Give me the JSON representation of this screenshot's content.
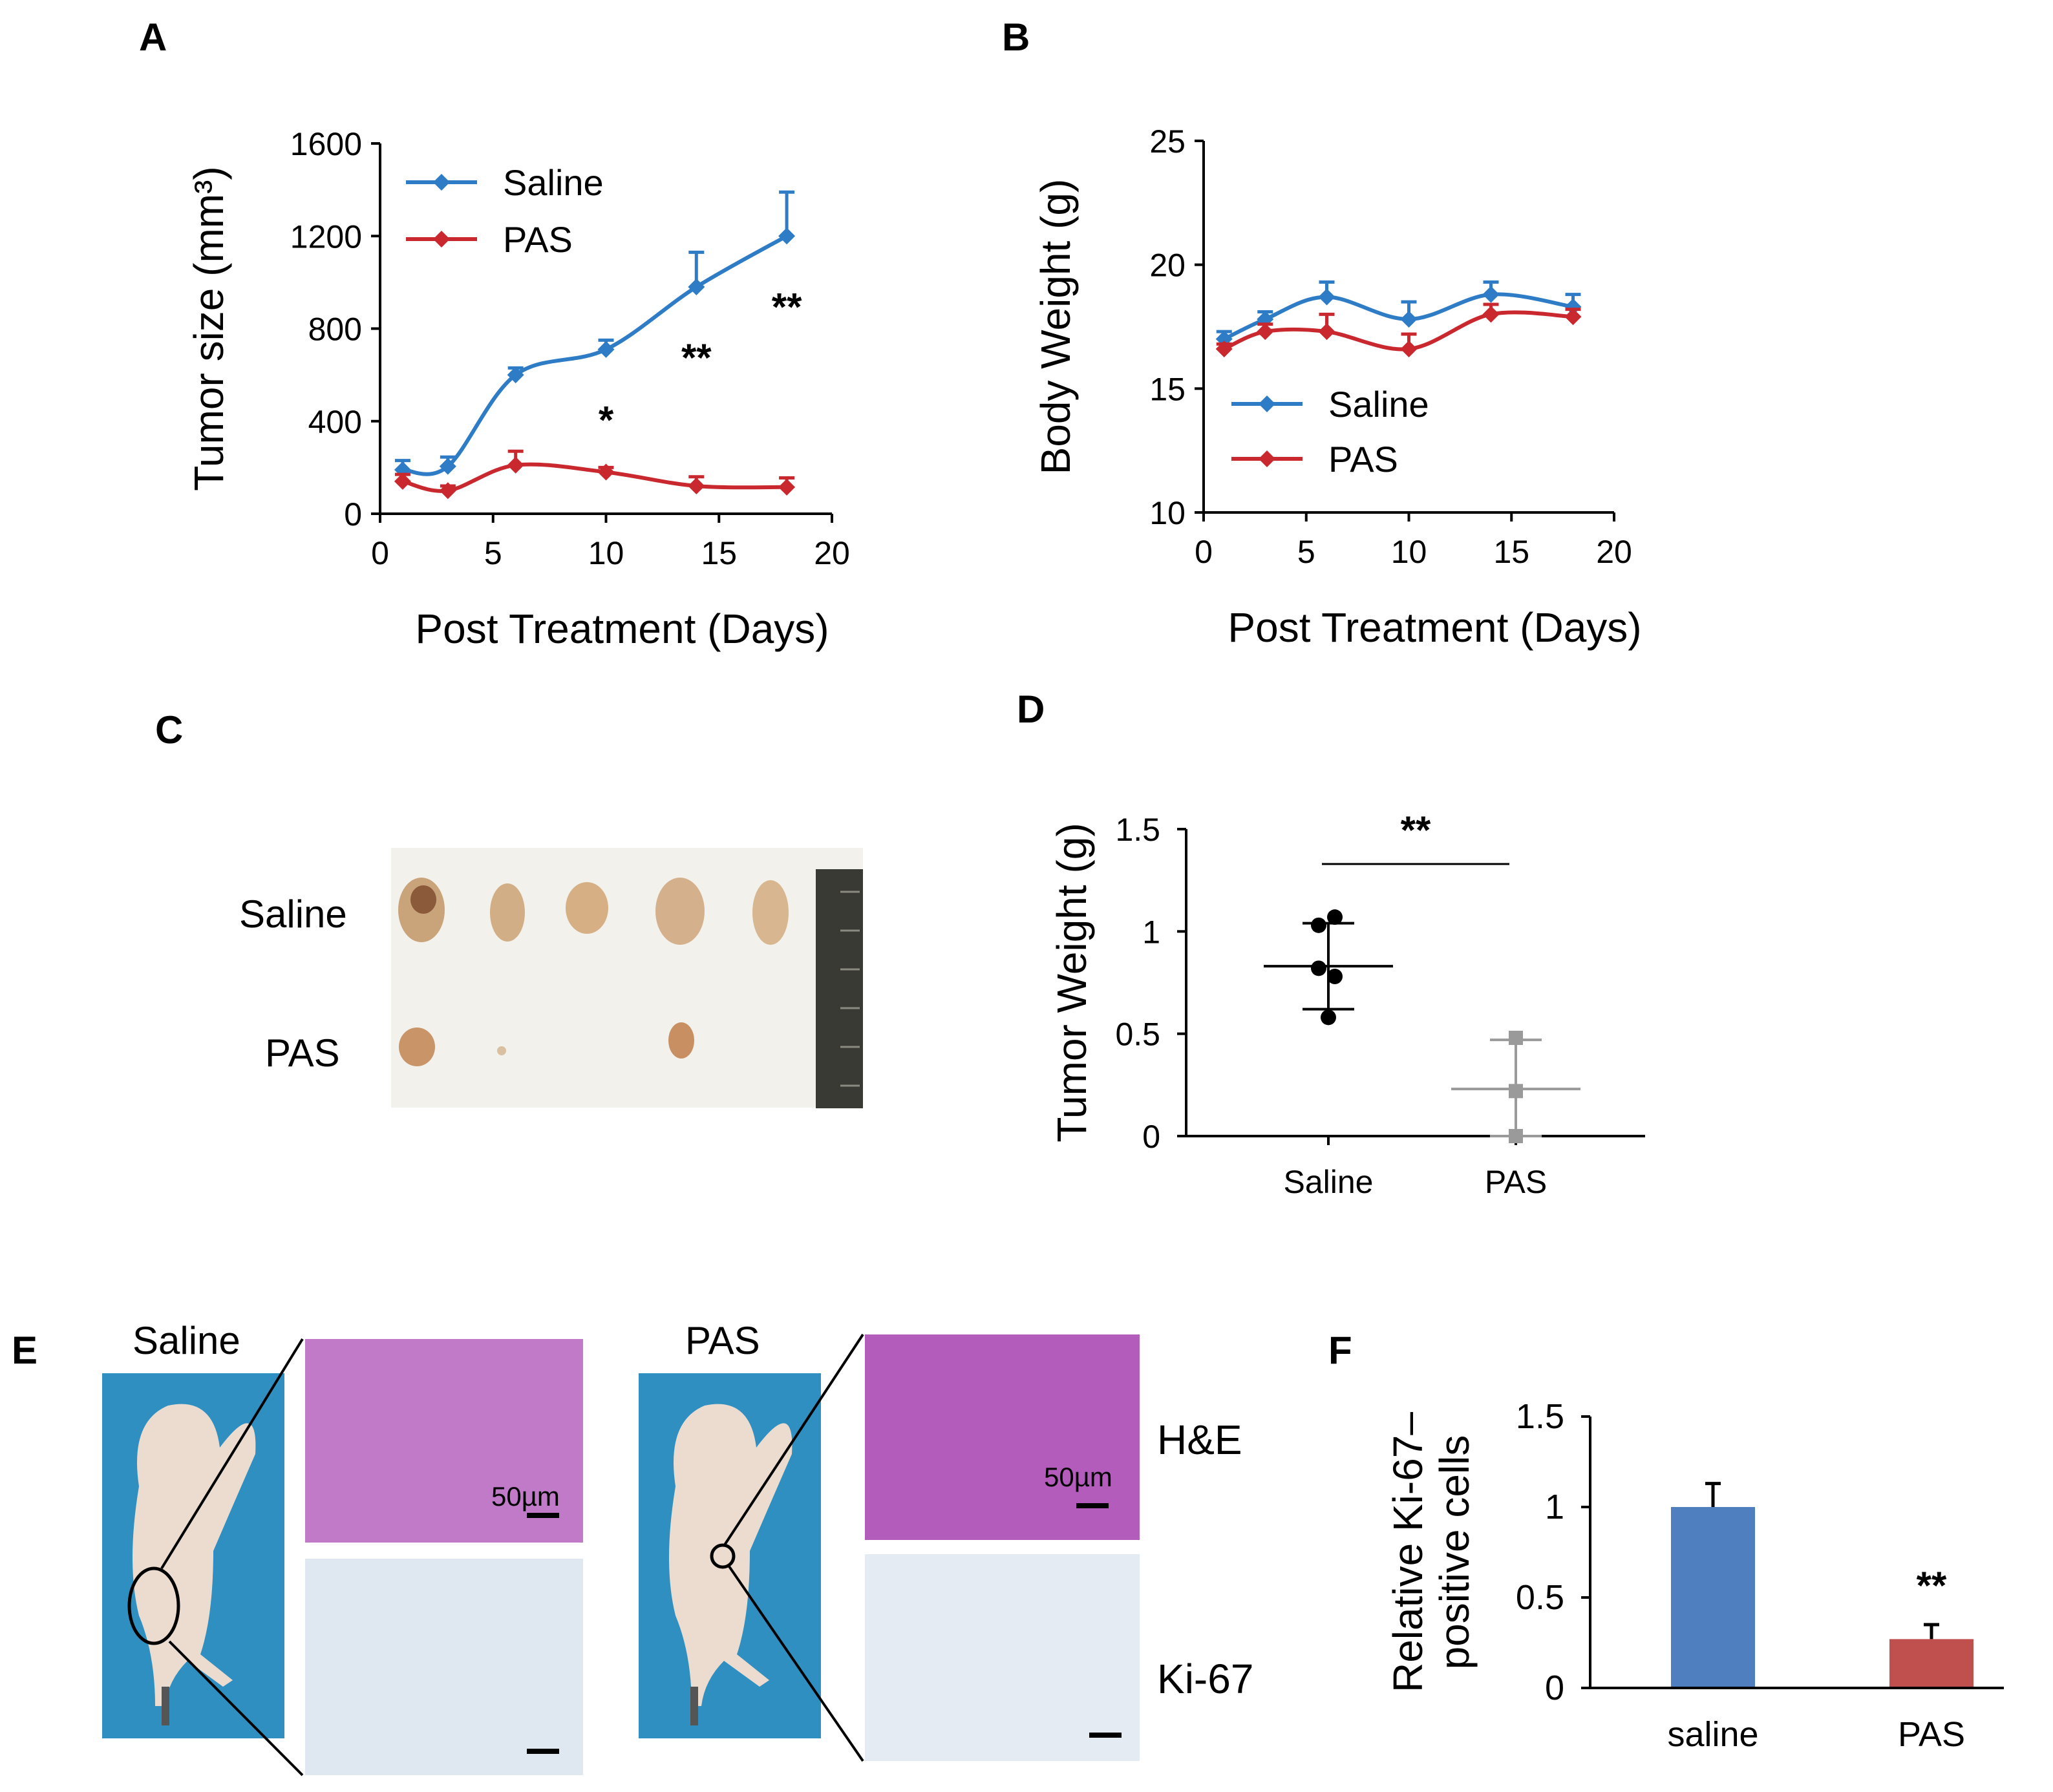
{
  "panels": {
    "a": "A",
    "b": "B",
    "c": "C",
    "d": "D",
    "e": "E",
    "f": "F"
  },
  "colors": {
    "saline": "#2E7CC6",
    "pas": "#C9282E",
    "bar_saline": "#4F7FBF",
    "bar_pas": "#C0504D",
    "scatter_pas": "#9A9A9A",
    "photo_blue": "#2F8FC0"
  },
  "photos": {
    "tumor_row_saline": "Saline",
    "tumor_row_pas": "PAS",
    "mouse_saline": "Saline",
    "mouse_pas": "PAS",
    "stain_he": "H&E",
    "stain_ki67": "Ki-67",
    "scale_bar_saline": "50µm",
    "scale_bar_pas": "50µm"
  },
  "chart_data": [
    {
      "id": "A",
      "type": "line",
      "xlabel": "Post Treatment (Days)",
      "ylabel": "Tumor size (mm³)",
      "xlim": [
        0,
        20
      ],
      "ylim": [
        0,
        1600
      ],
      "xticks": [
        "0",
        "5",
        "10",
        "15",
        "20"
      ],
      "yticks": [
        "0",
        "400",
        "800",
        "1200",
        "1600"
      ],
      "x": [
        1,
        3,
        6,
        10,
        14,
        18
      ],
      "series": [
        {
          "name": "Saline",
          "values": [
            190,
            205,
            600,
            710,
            980,
            1200
          ],
          "err": [
            40,
            40,
            30,
            40,
            150,
            190
          ]
        },
        {
          "name": "PAS",
          "values": [
            140,
            100,
            210,
            180,
            120,
            115
          ],
          "err": [
            30,
            20,
            60,
            20,
            40,
            40
          ]
        }
      ],
      "significance": [
        {
          "x": 10,
          "label": "*"
        },
        {
          "x": 14,
          "label": "**"
        },
        {
          "x": 18,
          "label": "**"
        }
      ],
      "legend": "top-left"
    },
    {
      "id": "B",
      "type": "line",
      "xlabel": "Post Treatment (Days)",
      "ylabel": "Body Weight (g)",
      "xlim": [
        0,
        20
      ],
      "ylim": [
        10,
        25
      ],
      "xticks": [
        "0",
        "5",
        "10",
        "15",
        "20"
      ],
      "yticks": [
        "10",
        "15",
        "20",
        "25"
      ],
      "x": [
        1,
        3,
        6,
        10,
        14,
        18
      ],
      "series": [
        {
          "name": "Saline",
          "values": [
            17.0,
            17.8,
            18.7,
            17.8,
            18.8,
            18.3
          ],
          "err": [
            0.3,
            0.3,
            0.6,
            0.7,
            0.5,
            0.5
          ]
        },
        {
          "name": "PAS",
          "values": [
            16.6,
            17.3,
            17.3,
            16.6,
            18.0,
            17.9
          ],
          "err": [
            0.2,
            0.3,
            0.7,
            0.6,
            0.4,
            0.3
          ]
        }
      ],
      "legend": "bottom-left"
    },
    {
      "id": "D",
      "type": "scatter",
      "ylabel": "Tumor Weight (g)",
      "ylim": [
        0,
        1.5
      ],
      "yticks": [
        "0",
        "0.5",
        "1",
        "1.5"
      ],
      "categories": [
        "Saline",
        "PAS"
      ],
      "series": [
        {
          "name": "Saline",
          "points": [
            1.07,
            1.03,
            0.82,
            0.78,
            0.58
          ],
          "mean": 0.83,
          "sd": 0.21
        },
        {
          "name": "PAS",
          "points": [
            0.48,
            0.22,
            0.0
          ],
          "mean": 0.23,
          "sd": 0.24
        }
      ],
      "significance": "**"
    },
    {
      "id": "F",
      "type": "bar",
      "ylabel_lines": [
        "Relative Ki-67–",
        "positive cells"
      ],
      "ylim": [
        0,
        1.5
      ],
      "yticks": [
        "0",
        "0.5",
        "1",
        "1.5"
      ],
      "categories": [
        "saline",
        "PAS"
      ],
      "values": [
        1.0,
        0.27
      ],
      "err": [
        0.13,
        0.08
      ],
      "significance": [
        {
          "category": "PAS",
          "label": "**"
        }
      ]
    }
  ]
}
